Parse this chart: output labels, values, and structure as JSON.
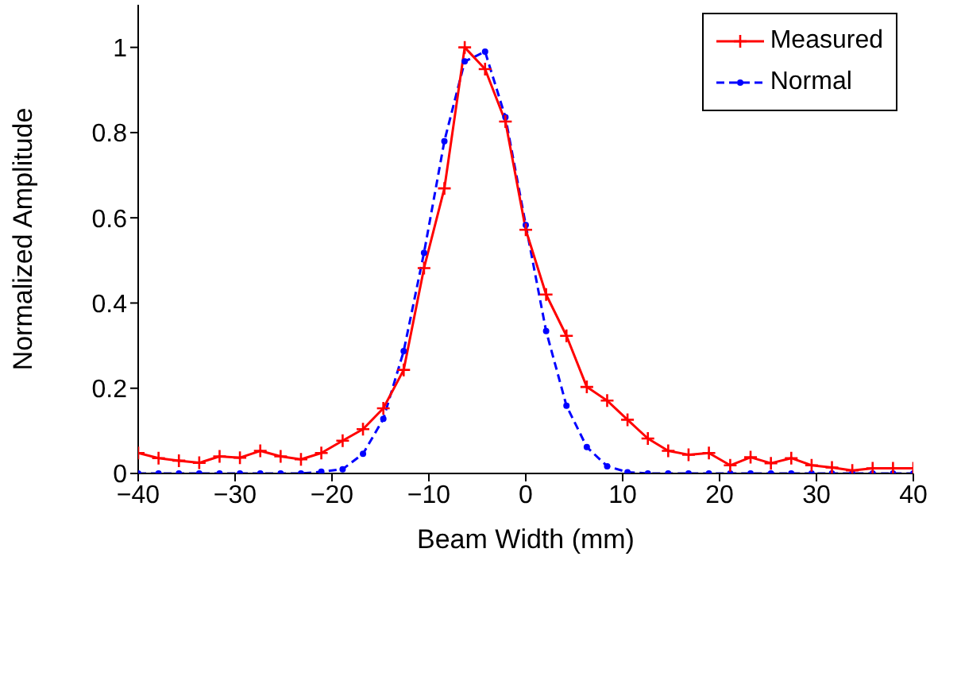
{
  "chart_data": {
    "type": "line",
    "xlabel": "Beam Width (mm)",
    "ylabel": "Normalized Amplitude",
    "x": [
      -40,
      -37.9,
      -35.8,
      -33.7,
      -31.6,
      -29.5,
      -27.4,
      -25.3,
      -23.2,
      -21.1,
      -18.9,
      -16.8,
      -14.7,
      -12.6,
      -10.5,
      -8.4,
      -6.3,
      -4.2,
      -2.1,
      0,
      2.1,
      4.2,
      6.3,
      8.4,
      10.5,
      12.6,
      14.7,
      16.8,
      18.9,
      21.1,
      23.2,
      25.3,
      27.4,
      29.5,
      31.6,
      33.7,
      35.8,
      37.9,
      40
    ],
    "series": [
      {
        "name": "Measured",
        "color": "#ff0000",
        "marker": "cross",
        "line_style": "solid",
        "values": [
          0.048,
          0.036,
          0.03,
          0.025,
          0.04,
          0.037,
          0.053,
          0.04,
          0.033,
          0.048,
          0.077,
          0.104,
          0.153,
          0.243,
          0.482,
          0.669,
          1.0,
          0.949,
          0.826,
          0.572,
          0.42,
          0.323,
          0.203,
          0.171,
          0.126,
          0.082,
          0.053,
          0.044,
          0.048,
          0.019,
          0.038,
          0.024,
          0.036,
          0.019,
          0.014,
          0.007,
          0.012,
          0.012,
          0.012
        ]
      },
      {
        "name": "Normal",
        "color": "#0000ff",
        "marker": "circle",
        "line_style": "dashed",
        "values": [
          0,
          0,
          0,
          0,
          0,
          0,
          0,
          0,
          0,
          0.004,
          0.01,
          0.046,
          0.128,
          0.287,
          0.518,
          0.78,
          0.967,
          0.99,
          0.836,
          0.583,
          0.334,
          0.159,
          0.062,
          0.017,
          0.003,
          0,
          0,
          0,
          0,
          0,
          0,
          0,
          0,
          0,
          0,
          0,
          0,
          0,
          0
        ]
      }
    ],
    "xlim": [
      -40,
      40
    ],
    "xticks": [
      -40,
      -30,
      -20,
      -10,
      0,
      10,
      20,
      30,
      40
    ],
    "ylim": [
      0,
      1.1
    ],
    "yticks": [
      0,
      0.2,
      0.4,
      0.6,
      0.8,
      1
    ],
    "legend": "top right"
  }
}
